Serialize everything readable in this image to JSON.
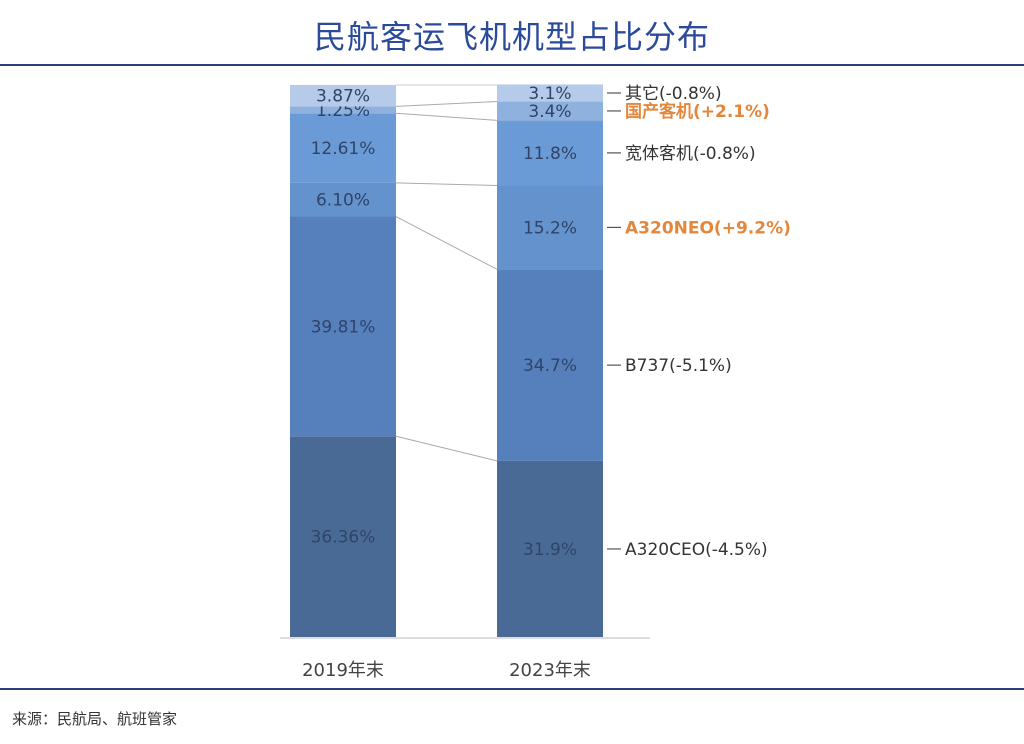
{
  "chart_data": {
    "type": "bar",
    "stacked": true,
    "title": "民航客运飞机机型占比分布",
    "categories": [
      "2019年末",
      "2023年末"
    ],
    "ylim": [
      0,
      100
    ],
    "grid": false,
    "series": [
      {
        "name": "A320CEO",
        "values": [
          36.36,
          31.9
        ],
        "labels": [
          "36.36%",
          "31.9%"
        ],
        "legend": "A320CEO(-4.5%)",
        "color": "#4a6a96",
        "highlight": false
      },
      {
        "name": "B737",
        "values": [
          39.81,
          34.7
        ],
        "labels": [
          "39.81%",
          "34.7%"
        ],
        "legend": "B737(-5.1%)",
        "color": "#5580bb",
        "highlight": false
      },
      {
        "name": "A320NEO",
        "values": [
          6.1,
          15.2
        ],
        "labels": [
          "6.10%",
          "15.2%"
        ],
        "legend": "A320NEO(+9.2%)",
        "color": "#6392cd",
        "highlight": true
      },
      {
        "name": "宽体客机",
        "values": [
          12.61,
          11.8
        ],
        "labels": [
          "12.61%",
          "11.8%"
        ],
        "legend": "宽体客机(-0.8%)",
        "color": "#6b9bd6",
        "highlight": false
      },
      {
        "name": "国产客机",
        "values": [
          1.25,
          3.4
        ],
        "labels": [
          "1.25%",
          "3.4%"
        ],
        "legend": "国产客机(+2.1%)",
        "color": "#8fb1de",
        "highlight": true
      },
      {
        "name": "其它",
        "values": [
          3.87,
          3.1
        ],
        "labels": [
          "3.87%",
          "3.1%"
        ],
        "legend": "其它(-0.8%)",
        "color": "#b5cbe9",
        "highlight": false
      }
    ],
    "highlight_color": "#e5873a",
    "label_color": "#2f4468",
    "source": "来源：民航局、航班管家"
  }
}
